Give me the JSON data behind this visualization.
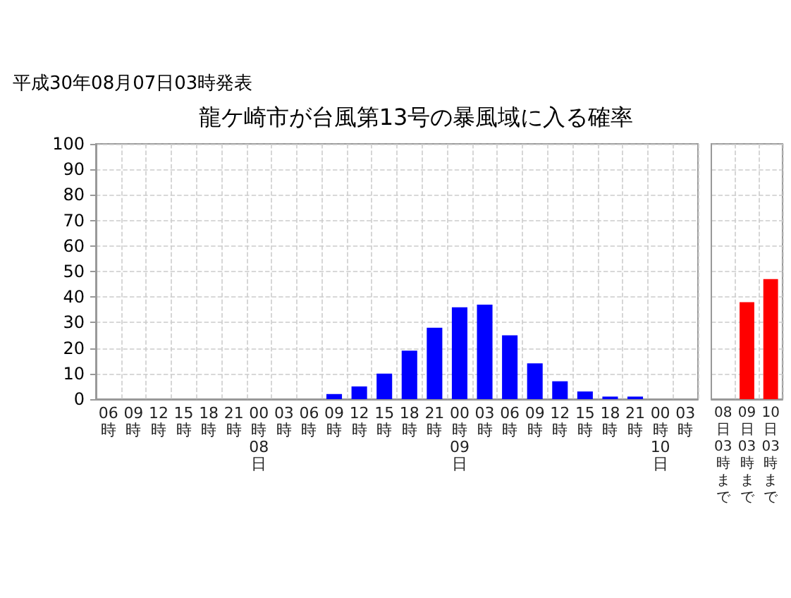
{
  "chart_data": [
    {
      "type": "bar",
      "subtitle": "平成30年08月07日03時発表",
      "title": "龍ケ崎市が台風第13号の暴風域に入る確率",
      "categories": [
        "06時",
        "09時",
        "12時",
        "15時",
        "18時",
        "21時",
        "00時08日",
        "03時",
        "06時",
        "09時",
        "12時",
        "15時",
        "18時",
        "21時",
        "00時09日",
        "03時",
        "06時",
        "09時",
        "12時",
        "15時",
        "18時",
        "21時",
        "00時10日",
        "03時"
      ],
      "values": [
        0,
        0,
        0,
        0,
        0,
        0,
        0,
        0,
        0,
        2,
        5,
        10,
        19,
        28,
        36,
        37,
        25,
        14,
        7,
        3,
        1,
        1,
        0,
        0
      ],
      "color": "#0000ff",
      "ylim": [
        0,
        100
      ],
      "yticks": [
        0,
        10,
        20,
        30,
        40,
        50,
        60,
        70,
        80,
        90,
        100
      ],
      "grid": true
    },
    {
      "type": "bar",
      "categories": [
        "08日03時まで",
        "09日03時まで",
        "10日03時まで"
      ],
      "values": [
        0,
        38,
        47
      ],
      "color": "#ff0000",
      "ylim": [
        0,
        100
      ],
      "yticks": [
        0,
        10,
        20,
        30,
        40,
        50,
        60,
        70,
        80,
        90,
        100
      ],
      "grid": true,
      "tick_labels": "x"
    }
  ]
}
